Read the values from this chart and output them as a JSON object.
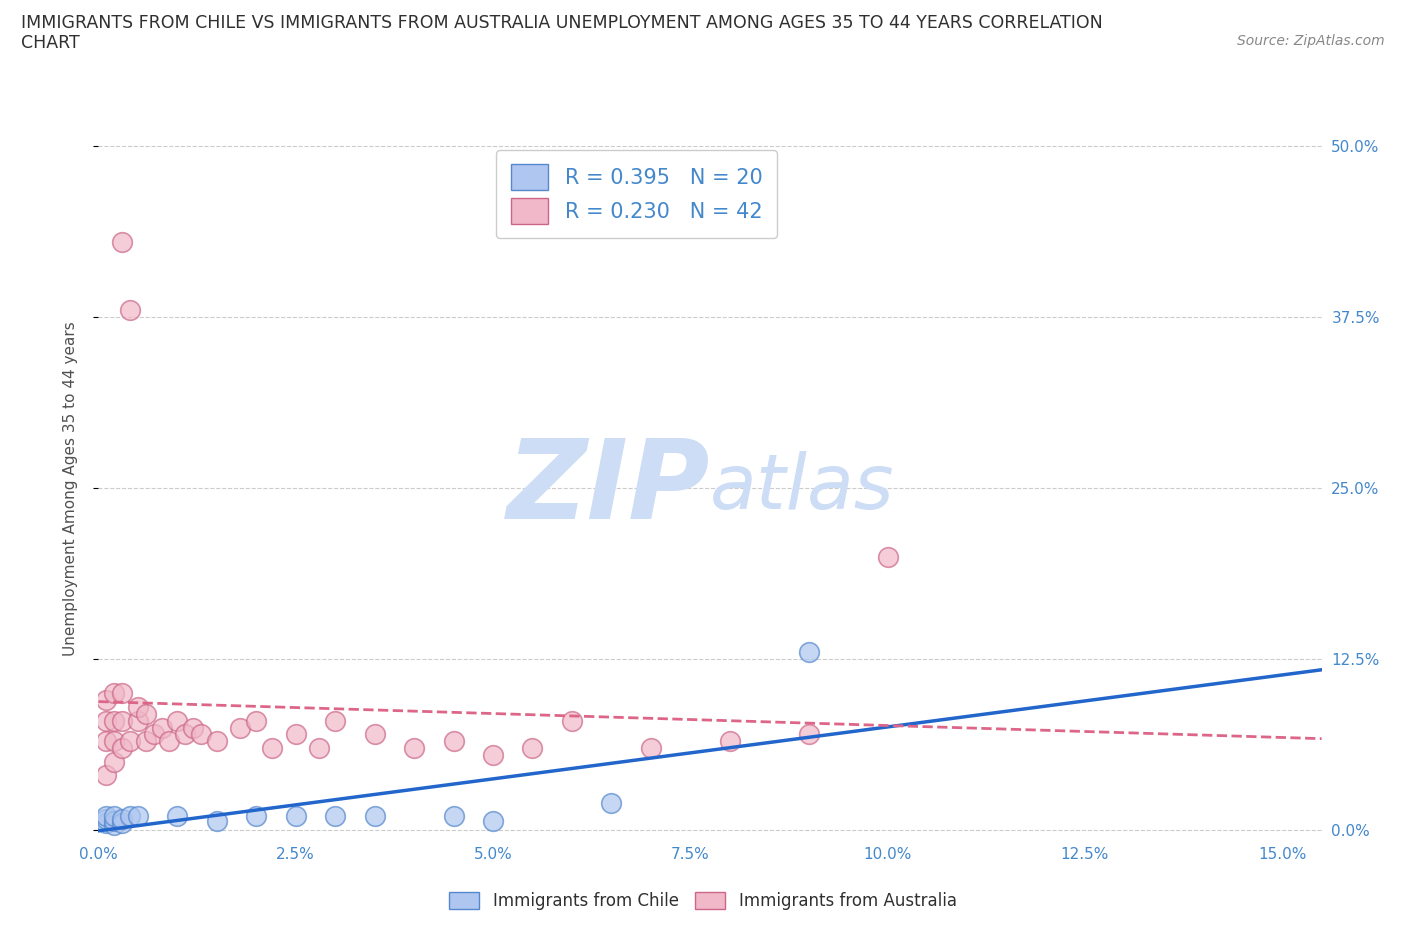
{
  "title_line1": "IMMIGRANTS FROM CHILE VS IMMIGRANTS FROM AUSTRALIA UNEMPLOYMENT AMONG AGES 35 TO 44 YEARS CORRELATION",
  "title_line2": "CHART",
  "source": "Source: ZipAtlas.com",
  "ylabel": "Unemployment Among Ages 35 to 44 years",
  "xlabel_ticks": [
    "0.0%",
    "2.5%",
    "5.0%",
    "7.5%",
    "10.0%",
    "12.5%",
    "15.0%"
  ],
  "ylabel_ticks": [
    "0.0%",
    "12.5%",
    "25.0%",
    "37.5%",
    "50.0%"
  ],
  "xlim": [
    0.0,
    0.155
  ],
  "ylim": [
    -0.005,
    0.505
  ],
  "R_chile": 0.395,
  "N_chile": 20,
  "R_australia": 0.23,
  "N_australia": 42,
  "chile_color": "#aec6f0",
  "chile_edge": "#5588cc",
  "australia_color": "#f0b8c8",
  "australia_edge": "#cc6688",
  "chile_line_color": "#2266cc",
  "australia_line_color": "#dd6688",
  "watermark_zip_color": "#cdddf5",
  "watermark_atlas_color": "#cdddf5",
  "legend_label_chile": "Immigrants from Chile",
  "legend_label_australia": "Immigrants from Australia",
  "background_color": "#ffffff",
  "grid_color": "#cccccc",
  "title_color": "#303030",
  "axis_label_color": "#505050",
  "tick_color": "#4488cc",
  "chile_x": [
    0.001,
    0.001,
    0.001,
    0.002,
    0.002,
    0.002,
    0.003,
    0.003,
    0.004,
    0.005,
    0.01,
    0.015,
    0.02,
    0.025,
    0.03,
    0.035,
    0.045,
    0.05,
    0.065,
    0.09
  ],
  "chile_y": [
    0.005,
    0.008,
    0.01,
    0.004,
    0.007,
    0.01,
    0.005,
    0.008,
    0.01,
    0.01,
    0.01,
    0.007,
    0.01,
    0.01,
    0.01,
    0.01,
    0.01,
    0.007,
    0.02,
    0.13
  ],
  "aus_x": [
    0.001,
    0.001,
    0.001,
    0.001,
    0.002,
    0.002,
    0.002,
    0.002,
    0.003,
    0.003,
    0.003,
    0.003,
    0.004,
    0.004,
    0.005,
    0.005,
    0.006,
    0.006,
    0.007,
    0.008,
    0.009,
    0.01,
    0.011,
    0.012,
    0.013,
    0.015,
    0.018,
    0.02,
    0.022,
    0.025,
    0.028,
    0.03,
    0.035,
    0.04,
    0.045,
    0.05,
    0.055,
    0.06,
    0.07,
    0.08,
    0.09,
    0.1
  ],
  "aus_y": [
    0.04,
    0.065,
    0.08,
    0.095,
    0.05,
    0.065,
    0.08,
    0.1,
    0.06,
    0.08,
    0.1,
    0.43,
    0.065,
    0.38,
    0.08,
    0.09,
    0.065,
    0.085,
    0.07,
    0.075,
    0.065,
    0.08,
    0.07,
    0.075,
    0.07,
    0.065,
    0.075,
    0.08,
    0.06,
    0.07,
    0.06,
    0.08,
    0.07,
    0.06,
    0.065,
    0.055,
    0.06,
    0.08,
    0.06,
    0.065,
    0.07,
    0.2
  ]
}
